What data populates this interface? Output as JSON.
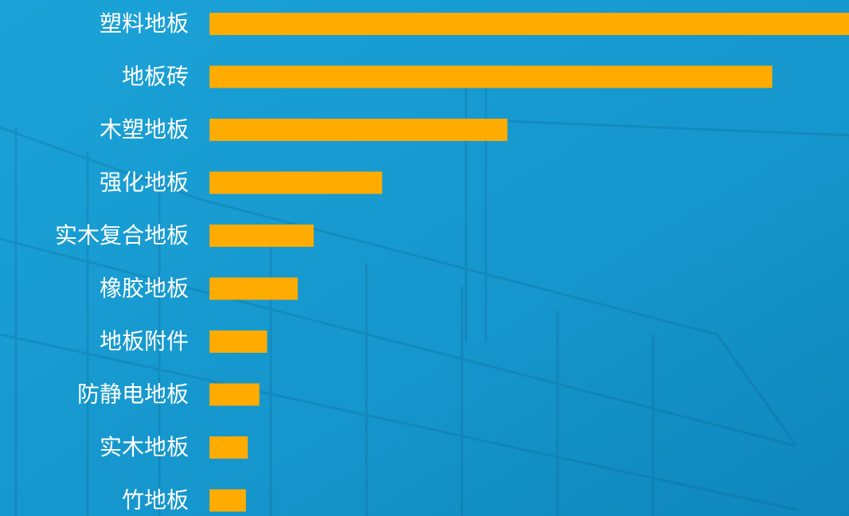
{
  "chart_data": {
    "type": "bar",
    "orientation": "horizontal",
    "categories": [
      "塑料地板",
      "地板砖",
      "木塑地板",
      "强化地板",
      "实木复合地板",
      "橡胶地板",
      "地板附件",
      "防静电地板",
      "实木地板",
      "竹地板"
    ],
    "values": [
      100,
      88,
      46.6,
      27,
      16.3,
      13.8,
      9,
      7.8,
      6,
      5.7
    ],
    "color": "#ffab00"
  }
}
